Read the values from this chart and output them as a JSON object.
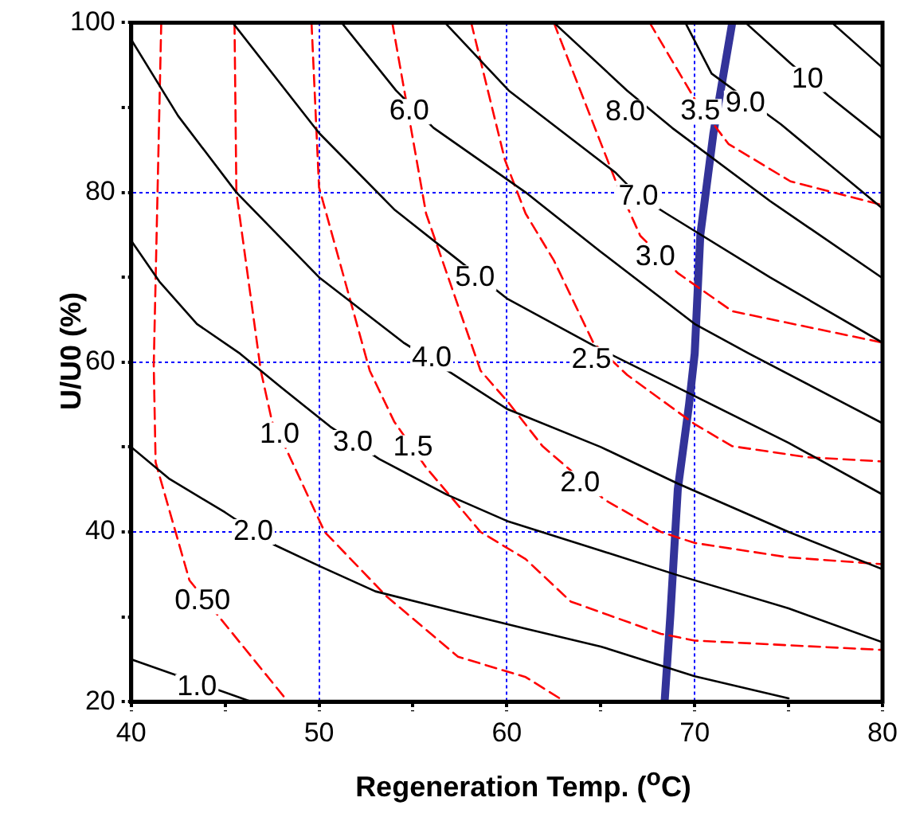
{
  "chart_data": {
    "type": "line",
    "xlabel": "Regeneration Temp. ($^{o}$C)",
    "ylabel": "U/U0 (%)",
    "xlim": [
      40,
      80
    ],
    "ylim": [
      20,
      100
    ],
    "xticks": [
      40,
      {
        "value": 45,
        "label": null
      },
      50,
      {
        "value": 55,
        "label": null
      },
      60,
      {
        "value": 65,
        "label": null
      },
      70,
      {
        "value": 75,
        "label": null
      },
      80
    ],
    "yticks": [
      20,
      {
        "value": 30,
        "label": null
      },
      40,
      {
        "value": 50,
        "label": null
      },
      60,
      {
        "value": 70,
        "label": null
      },
      80,
      {
        "value": 90,
        "label": null
      },
      100
    ],
    "grid": true,
    "legend": false,
    "marker": "none",
    "series": [
      {
        "color": "#000000",
        "line_style": "solid",
        "x": [
          40,
          46.4
        ],
        "values": [
          25,
          20
        ]
      },
      {
        "color": "#000000",
        "line_style": "solid",
        "x": [
          40,
          42,
          45,
          47.6,
          50,
          53,
          57.5,
          61,
          65,
          70,
          75
        ],
        "values": [
          50,
          46.3,
          42.3,
          38.5,
          36,
          33,
          30.5,
          28.6,
          26.5,
          23,
          20.4
        ]
      },
      {
        "color": "#000000",
        "line_style": "solid",
        "x": [
          40,
          41.5,
          43.5,
          45.8,
          48,
          50.6,
          53.2,
          56.8,
          60,
          65,
          69.1,
          75,
          80
        ],
        "values": [
          74.3,
          69.5,
          64.5,
          61,
          57,
          52.4,
          48.6,
          44.4,
          41.3,
          37.8,
          34.9,
          31,
          27
        ]
      },
      {
        "color": "#000000",
        "line_style": "solid",
        "x": [
          40,
          42.5,
          45.6,
          50,
          54.5,
          57.2,
          60,
          65,
          69.1,
          75,
          80
        ],
        "values": [
          98,
          89,
          80,
          70,
          62.3,
          58.5,
          54.5,
          50,
          45.7,
          40,
          35.6
        ]
      },
      {
        "color": "#000000",
        "line_style": "solid",
        "x": [
          45.4,
          50,
          54,
          57.2,
          60,
          65,
          70,
          75,
          80
        ],
        "values": [
          100,
          87,
          78,
          72.4,
          67.5,
          61.5,
          56,
          50.5,
          44.4
        ]
      },
      {
        "color": "#000000",
        "line_style": "solid",
        "x": [
          51.2,
          54.1,
          56.1,
          61,
          65,
          70,
          72.9,
          80
        ],
        "values": [
          100,
          92,
          87.6,
          80,
          73,
          64.5,
          61,
          52.8
        ]
      },
      {
        "color": "#000000",
        "line_style": "solid",
        "x": [
          56.7,
          60.1,
          65.8,
          67,
          68.5,
          74,
          80
        ],
        "values": [
          100,
          92,
          82.3,
          79.6,
          77.5,
          70,
          62.3
        ]
      },
      {
        "color": "#000000",
        "line_style": "solid",
        "x": [
          62.5,
          66.4,
          68.8,
          74,
          80
        ],
        "values": [
          100,
          92,
          87.6,
          79,
          69.9
        ]
      },
      {
        "color": "#000000",
        "line_style": "solid",
        "x": [
          69.5,
          70.9,
          74.6,
          80
        ],
        "values": [
          100,
          94,
          88,
          78.1
        ]
      },
      {
        "color": "#000000",
        "line_style": "solid",
        "x": [
          72.7,
          75.1,
          77.1,
          80
        ],
        "values": [
          100,
          95.2,
          91.4,
          86.3
        ]
      },
      {
        "color": "#000000",
        "line_style": "solid",
        "x": [
          77.3,
          80
        ],
        "values": [
          100,
          94.7
        ]
      },
      {
        "color": "#ff0000",
        "line_style": "dashed",
        "x": [
          41.6,
          41.2,
          41.3,
          43.1,
          48.2
        ],
        "values": [
          100,
          59.6,
          48.2,
          34.3,
          20.4
        ]
      },
      {
        "color": "#ff0000",
        "line_style": "dashed",
        "x": [
          45.5,
          45.6,
          46.9,
          47.5,
          48.2,
          50.3,
          53.6,
          57.4,
          61,
          63.1
        ],
        "values": [
          100,
          80,
          59,
          53,
          50,
          40,
          32.4,
          25.3,
          22.9,
          20
        ]
      },
      {
        "color": "#ff0000",
        "line_style": "dashed",
        "x": [
          49.6,
          50,
          52.7,
          54,
          55.7,
          58.6,
          61,
          63.4,
          68.2,
          70,
          80
        ],
        "values": [
          100,
          80.6,
          59,
          53,
          47.6,
          40,
          36.8,
          31.8,
          28,
          27.2,
          26.1
        ]
      },
      {
        "color": "#ff0000",
        "line_style": "dashed",
        "x": [
          53.9,
          55.7,
          58.6,
          60.1,
          61.9,
          65.2,
          68.2,
          70,
          75,
          80
        ],
        "values": [
          100,
          77.5,
          59,
          55.2,
          50.1,
          43.8,
          40,
          38.7,
          37,
          36.2
        ]
      },
      {
        "color": "#ff0000",
        "line_style": "dashed",
        "x": [
          58.1,
          59.9,
          61,
          62.5,
          64.6,
          66.4,
          70,
          72,
          76,
          80
        ],
        "values": [
          100,
          83.8,
          77.5,
          72,
          62.3,
          58.5,
          52.7,
          50.1,
          48.8,
          48.3
        ]
      },
      {
        "color": "#ff0000",
        "line_style": "dashed",
        "x": [
          62.5,
          65.8,
          67.1,
          69.1,
          72,
          80
        ],
        "values": [
          100,
          81.3,
          74.9,
          70.5,
          66,
          62.3
        ]
      },
      {
        "color": "#ff0000",
        "line_style": "dashed",
        "x": [
          67.6,
          70,
          71.8,
          75.1,
          80
        ],
        "values": [
          100,
          91,
          85.7,
          81.3,
          78.5
        ]
      },
      {
        "color": "#333399",
        "line_style": "solid",
        "x": [
          68.4,
          68.7,
          69.1,
          69.7,
          70,
          70.3,
          71,
          72
        ],
        "values": [
          20,
          30,
          45,
          55,
          61,
          75,
          87,
          100
        ]
      }
    ],
    "annotations": [
      {
        "text": "1.0",
        "x": 43.5,
        "y": 21.7
      },
      {
        "text": "2.0",
        "x": 46.5,
        "y": 40
      },
      {
        "text": "3.0",
        "x": 51.8,
        "y": 50.5
      },
      {
        "text": "4.0",
        "x": 56,
        "y": 60.4
      },
      {
        "text": "5.0",
        "x": 58.3,
        "y": 69.9
      },
      {
        "text": "6.0",
        "x": 54.8,
        "y": 89.5
      },
      {
        "text": "7.0",
        "x": 67,
        "y": 79.5
      },
      {
        "text": "8.0",
        "x": 66.3,
        "y": 89.4
      },
      {
        "text": "9.0",
        "x": 72.7,
        "y": 90.5
      },
      {
        "text": "10",
        "x": 76,
        "y": 93.3
      },
      {
        "text": "0.50",
        "x": 43.8,
        "y": 31.8
      },
      {
        "text": "1.0",
        "x": 47.9,
        "y": 51.4
      },
      {
        "text": "1.5",
        "x": 55,
        "y": 49.9
      },
      {
        "text": "2.0",
        "x": 63.9,
        "y": 45.7
      },
      {
        "text": "2.5",
        "x": 64.5,
        "y": 60.3
      },
      {
        "text": "3.0",
        "x": 67.9,
        "y": 72.4
      },
      {
        "text": "3.5",
        "x": 70.3,
        "y": 89.5
      }
    ]
  }
}
